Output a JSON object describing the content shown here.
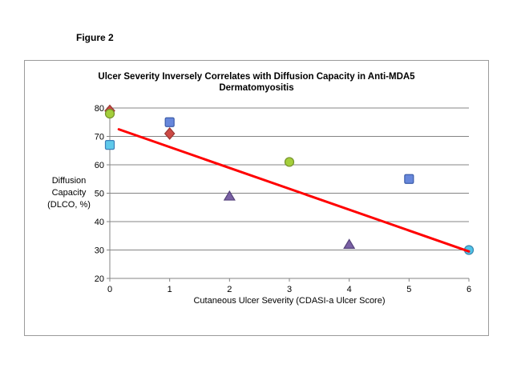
{
  "figure_label": "Figure 2",
  "chart_data": {
    "type": "scatter",
    "title_line1": "Ulcer Severity Inversely Correlates with Diffusion Capacity in Anti-MDA5",
    "title_line2": "Dermatomyositis",
    "xlabel": "Cutaneous Ulcer Severity (CDASI-a Ulcer Score)",
    "ylabel_lines": [
      "Diffusion",
      "Capacity",
      "(DLCO, %)"
    ],
    "xlim": [
      0,
      6
    ],
    "ylim": [
      20,
      80
    ],
    "x_ticks": [
      0,
      1,
      2,
      3,
      4,
      5,
      6
    ],
    "y_ticks": [
      20,
      30,
      40,
      50,
      60,
      70,
      80
    ],
    "grid": "horizontal-only",
    "gridline_color": "#848484",
    "axis_color": "#848484",
    "series": [
      {
        "name": "red-diamond",
        "marker": "diamond",
        "fill": "#CD4A45",
        "border": "#9A3734",
        "points": [
          [
            0,
            79
          ],
          [
            1,
            71
          ]
        ]
      },
      {
        "name": "green-circle",
        "marker": "circle",
        "fill": "#A4CE3B",
        "border": "#75922B",
        "points": [
          [
            0,
            78
          ],
          [
            3,
            61
          ]
        ]
      },
      {
        "name": "cyan-square",
        "marker": "square",
        "fill": "#5FC9EA",
        "border": "#3C7EB8",
        "points": [
          [
            0,
            67
          ]
        ]
      },
      {
        "name": "blue-square",
        "marker": "square",
        "fill": "#6787DB",
        "border": "#3D5DA9",
        "points": [
          [
            1,
            75
          ],
          [
            5,
            55
          ]
        ]
      },
      {
        "name": "purple-triangle",
        "marker": "triangle",
        "fill": "#7A61A5",
        "border": "#55427A",
        "points": [
          [
            2,
            49
          ],
          [
            4,
            32
          ]
        ]
      },
      {
        "name": "cyan-circle",
        "marker": "circle",
        "fill": "#4FC3E8",
        "border": "#3A86AD",
        "points": [
          [
            6,
            30
          ]
        ]
      }
    ],
    "trendline": {
      "x1": 0.15,
      "y1": 72.5,
      "x2": 6,
      "y2": 29.5,
      "color": "#FF0000",
      "width": 3
    }
  }
}
